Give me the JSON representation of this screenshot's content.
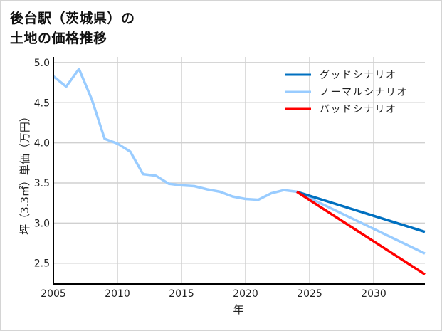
{
  "title": {
    "line1": "後台駅（茨城県）の",
    "line2": "土地の価格推移"
  },
  "chart_data": {
    "type": "line",
    "title": "後台駅（茨城県）の土地の価格推移",
    "xlabel": "年",
    "ylabel": "坪（3.3㎡）単価（万円）",
    "xlim": [
      2005,
      2034
    ],
    "ylim": [
      2.24,
      5.07
    ],
    "xticks": [
      2005,
      2010,
      2015,
      2020,
      2025,
      2030
    ],
    "yticks": [
      2.5,
      3.0,
      3.5,
      4.0,
      4.5,
      5.0
    ],
    "ytick_labels": [
      "2.5",
      "3.0",
      "3.5",
      "4.0",
      "4.5",
      "5.0"
    ],
    "grid": true,
    "legend_position": "upper right",
    "series": [
      {
        "name": "グッドシナリオ",
        "color": "#0070c0",
        "x": [
          2024,
          2034
        ],
        "values": [
          3.39,
          2.89
        ]
      },
      {
        "name": "ノーマルシナリオ",
        "color": "#99ccff",
        "x": [
          2005,
          2006,
          2007,
          2008,
          2009,
          2010,
          2011,
          2012,
          2013,
          2014,
          2015,
          2016,
          2017,
          2018,
          2019,
          2020,
          2021,
          2022,
          2023,
          2024,
          2034
        ],
        "values": [
          4.83,
          4.7,
          4.92,
          4.54,
          4.05,
          3.99,
          3.89,
          3.61,
          3.59,
          3.49,
          3.47,
          3.46,
          3.42,
          3.39,
          3.33,
          3.3,
          3.29,
          3.37,
          3.41,
          3.39,
          2.62
        ]
      },
      {
        "name": "バッドシナリオ",
        "color": "#ff0000",
        "x": [
          2024,
          2034
        ],
        "values": [
          3.39,
          2.36
        ]
      }
    ]
  }
}
